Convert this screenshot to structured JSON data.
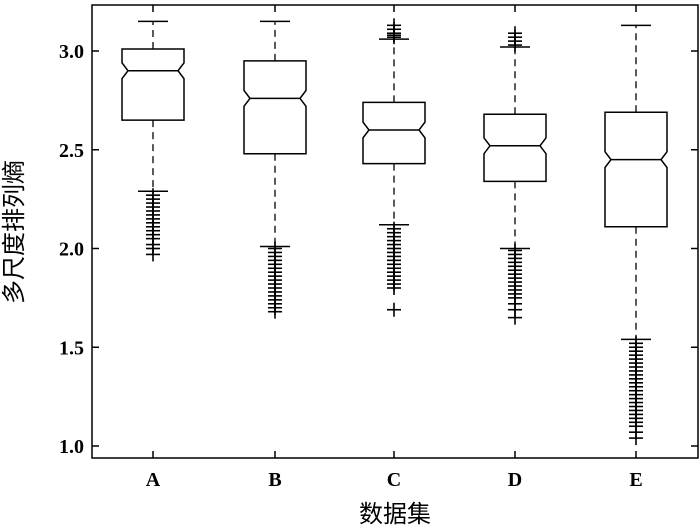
{
  "chart_data": {
    "type": "boxplot",
    "xlabel": "数据集",
    "ylabel": "多尺度排列熵",
    "ylim": [
      0.93,
      3.2
    ],
    "yticks": [
      "1.0",
      "1.5",
      "2.0",
      "2.5",
      "3.0"
    ],
    "ytick_values": [
      1.0,
      1.5,
      2.0,
      2.5,
      3.0
    ],
    "categories": [
      "A",
      "B",
      "C",
      "D",
      "E"
    ],
    "notched": true,
    "grid": false,
    "boxes": [
      {
        "category": "A",
        "whisker_low": 2.29,
        "q1": 2.65,
        "median": 2.9,
        "q3": 3.01,
        "whisker_high": 3.15,
        "outliers": [
          2.27,
          2.25,
          2.23,
          2.21,
          2.19,
          2.17,
          2.15,
          2.13,
          2.11,
          2.09,
          2.07,
          2.05,
          2.02,
          2.0,
          1.97
        ]
      },
      {
        "category": "B",
        "whisker_low": 2.01,
        "q1": 2.48,
        "median": 2.76,
        "q3": 2.95,
        "whisker_high": 3.15,
        "outliers": [
          2.0,
          1.98,
          1.96,
          1.94,
          1.92,
          1.9,
          1.88,
          1.86,
          1.84,
          1.82,
          1.8,
          1.78,
          1.76,
          1.74,
          1.72,
          1.7,
          1.68
        ]
      },
      {
        "category": "C",
        "whisker_low": 2.12,
        "q1": 2.43,
        "median": 2.6,
        "q3": 2.74,
        "whisker_high": 3.06,
        "outliers": [
          3.13,
          3.11,
          3.09,
          3.08,
          3.07,
          2.1,
          2.08,
          2.06,
          2.04,
          2.02,
          2.0,
          1.98,
          1.96,
          1.94,
          1.92,
          1.9,
          1.88,
          1.86,
          1.84,
          1.82,
          1.8,
          1.69
        ]
      },
      {
        "category": "D",
        "whisker_low": 2.0,
        "q1": 2.34,
        "median": 2.52,
        "q3": 2.68,
        "whisker_high": 3.02,
        "outliers": [
          3.03,
          3.05,
          3.07,
          3.09,
          1.99,
          1.97,
          1.95,
          1.93,
          1.91,
          1.89,
          1.87,
          1.85,
          1.83,
          1.81,
          1.79,
          1.77,
          1.75,
          1.72,
          1.69,
          1.65
        ]
      },
      {
        "category": "E",
        "whisker_low": 1.54,
        "q1": 2.11,
        "median": 2.45,
        "q3": 2.69,
        "whisker_high": 3.13,
        "outliers": [
          1.52,
          1.5,
          1.48,
          1.46,
          1.44,
          1.42,
          1.4,
          1.38,
          1.36,
          1.34,
          1.32,
          1.3,
          1.28,
          1.26,
          1.24,
          1.22,
          1.2,
          1.18,
          1.16,
          1.14,
          1.12,
          1.1,
          1.07,
          1.04
        ]
      }
    ]
  }
}
